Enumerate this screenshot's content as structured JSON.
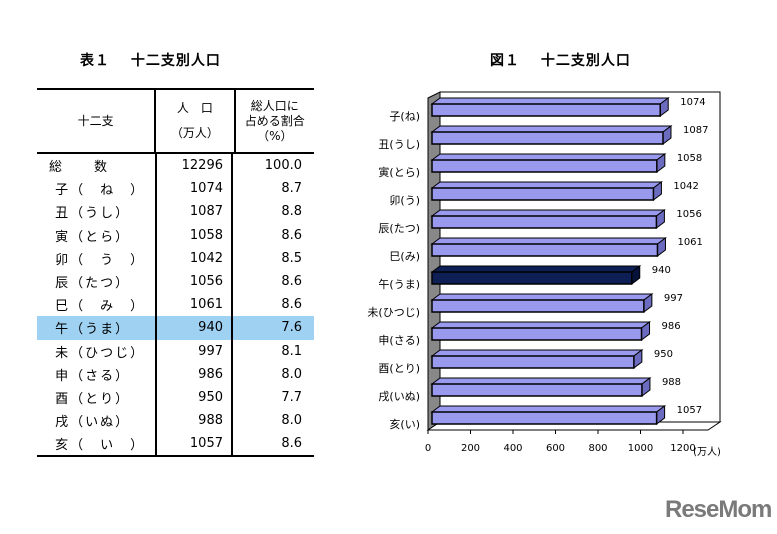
{
  "table": {
    "title": "表１　 十二支別人口",
    "headers": {
      "col1": "十二支",
      "col2_line1": "人　口",
      "col2_line2": "（万人）",
      "col3_line1": "総人口に",
      "col3_line2": "占める割合",
      "col3_line3": "（%）"
    },
    "rows": [
      {
        "label": "総　　数",
        "pop": "12296",
        "pct": "100.0"
      },
      {
        "label": " 子（　ね　）",
        "pop": "1074",
        "pct": "8.7"
      },
      {
        "label": " 丑（うし）",
        "pop": "1087",
        "pct": "8.8"
      },
      {
        "label": " 寅（とら）",
        "pop": "1058",
        "pct": "8.6"
      },
      {
        "label": " 卯（　う　）",
        "pop": "1042",
        "pct": "8.5"
      },
      {
        "label": " 辰（たつ）",
        "pop": "1056",
        "pct": "8.6"
      },
      {
        "label": " 巳（　み　）",
        "pop": "1061",
        "pct": "8.6"
      },
      {
        "label": " 午（うま）",
        "pop": "940",
        "pct": "7.6",
        "highlight": true
      },
      {
        "label": " 未（ひつじ）",
        "pop": "997",
        "pct": "8.1"
      },
      {
        "label": " 申（さる）",
        "pop": "986",
        "pct": "8.0"
      },
      {
        "label": " 酉（とり）",
        "pop": "950",
        "pct": "7.7"
      },
      {
        "label": " 戌（いぬ）",
        "pop": "988",
        "pct": "8.0"
      },
      {
        "label": " 亥（　い　）",
        "pop": "1057",
        "pct": "8.6"
      }
    ],
    "highlight_color": "#9fd2f2"
  },
  "chart_data": {
    "type": "bar",
    "orientation": "horizontal",
    "title": "図１　 十二支別人口",
    "categories": [
      "子(ね)",
      "丑(うし)",
      "寅(とら)",
      "卯(う)",
      "辰(たつ)",
      "巳(み)",
      "午(うま)",
      "未(ひつじ)",
      "申(さる)",
      "酉(とり)",
      "戌(いぬ)",
      "亥(い)"
    ],
    "values": [
      1074,
      1087,
      1058,
      1042,
      1056,
      1061,
      940,
      997,
      986,
      950,
      988,
      1057
    ],
    "data_labels": [
      "1074",
      "1087",
      "1058",
      "1042",
      "1056",
      "1061",
      "940",
      "997",
      "986",
      "950",
      "988",
      "1057"
    ],
    "xlim": [
      0,
      1200
    ],
    "xticks": [
      "0",
      "200",
      "400",
      "600",
      "800",
      "1000",
      "1200"
    ],
    "xunit": "(万人)",
    "bar_color": "#9999ee",
    "highlight_color": "#0d1f55",
    "highlight_index": 6,
    "grid": false
  },
  "logo": "ReseMom"
}
